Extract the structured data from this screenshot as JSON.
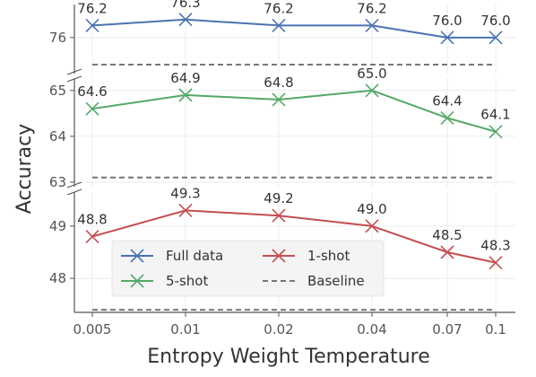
{
  "chart_data": {
    "type": "line",
    "xlabel": "Entropy Weight Temperature",
    "ylabel": "Accuracy",
    "categories": [
      "0.005",
      "0.01",
      "0.02",
      "0.04",
      "0.07",
      "0.1"
    ],
    "grid": true,
    "legend_position": "lower-left",
    "broken_y_axis": true,
    "panels": [
      {
        "id": "top",
        "ylim": [
          75.4,
          76.55
        ],
        "yticks": [
          76
        ],
        "baseline": 75.55
      },
      {
        "id": "middle",
        "ylim": [
          62.9,
          65.25
        ],
        "yticks": [
          63,
          64,
          65
        ],
        "baseline": 63.1
      },
      {
        "id": "bottom",
        "ylim": [
          47.35,
          49.65
        ],
        "yticks": [
          48,
          49
        ],
        "baseline": 47.4
      }
    ],
    "series": [
      {
        "name": "Full data",
        "panel": "top",
        "color": "#4c72b0",
        "values": [
          76.2,
          76.3,
          76.2,
          76.2,
          76.0,
          76.0
        ],
        "labels": [
          "76.2",
          "76.3",
          "76.2",
          "76.2",
          "76.0",
          "76.0"
        ]
      },
      {
        "name": "5-shot",
        "panel": "middle",
        "color": "#55a868",
        "values": [
          64.6,
          64.9,
          64.8,
          65.0,
          64.4,
          64.1
        ],
        "labels": [
          "64.6",
          "64.9",
          "64.8",
          "65.0",
          "64.4",
          "64.1"
        ]
      },
      {
        "name": "1-shot",
        "panel": "bottom",
        "color": "#c44e52",
        "values": [
          48.8,
          49.3,
          49.2,
          49.0,
          48.5,
          48.3
        ],
        "labels": [
          "48.8",
          "49.3",
          "49.2",
          "49.0",
          "48.5",
          "48.3"
        ]
      }
    ],
    "baseline": {
      "name": "Baseline",
      "color": "#777777",
      "style": "dashed"
    },
    "legend": [
      "Full data",
      "1-shot",
      "5-shot",
      "Baseline"
    ]
  }
}
